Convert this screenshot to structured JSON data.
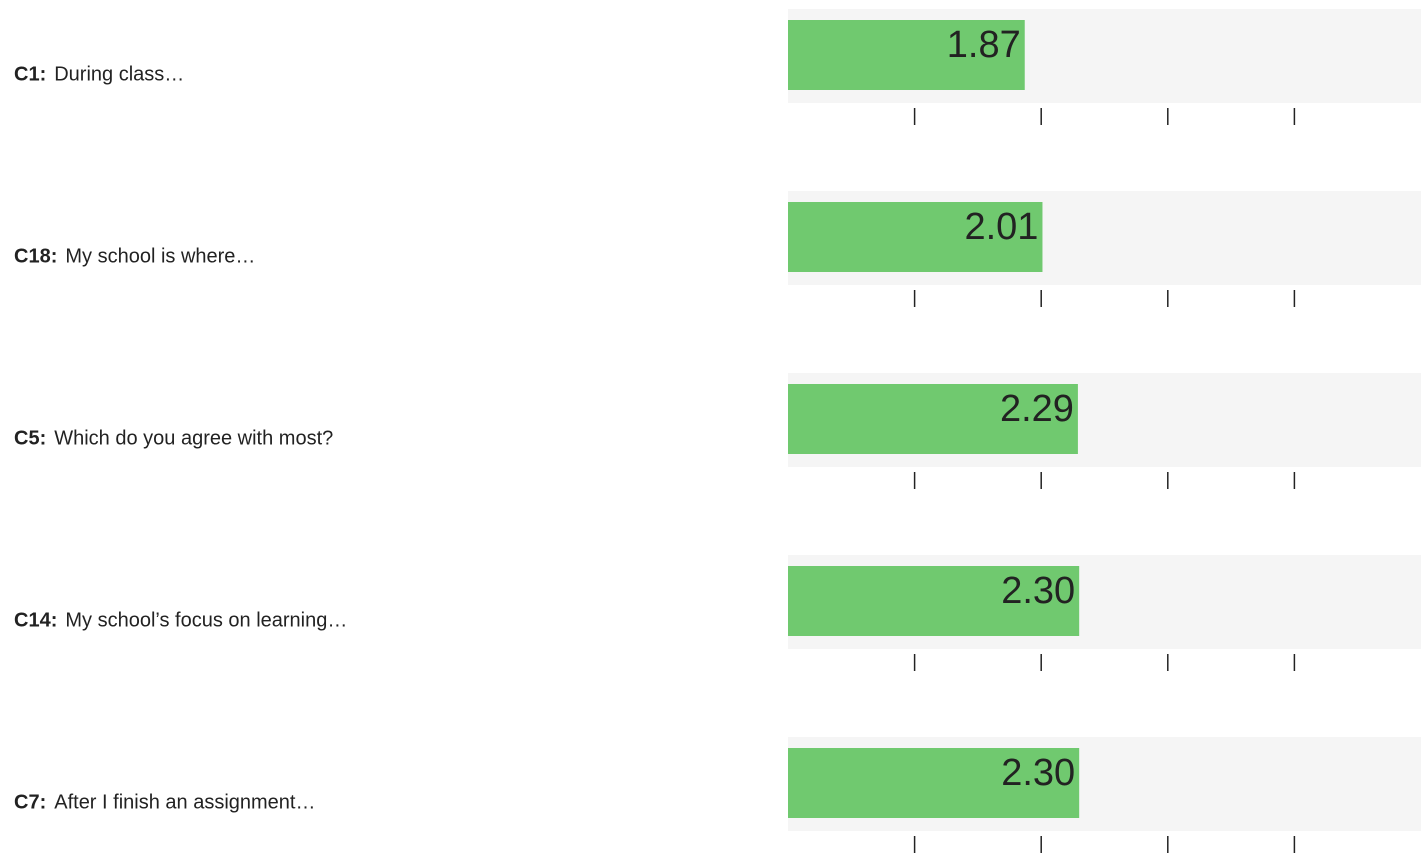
{
  "chart_data": {
    "type": "bar",
    "orientation": "horizontal",
    "codes": [
      "C1:",
      "C18:",
      "C5:",
      "C14:",
      "C7:"
    ],
    "categories": [
      "During class…",
      "My school is where…",
      "Which do you agree with most?",
      "My school’s focus on learning…",
      "After I finish an assignment…"
    ],
    "values": [
      1.87,
      2.01,
      2.29,
      2.3,
      2.3
    ],
    "value_labels": [
      "1.87",
      "2.01",
      "2.29",
      "2.30",
      "2.30"
    ],
    "color": "#70c96f",
    "track_color": "#f5f5f5",
    "xlim": [
      0,
      5
    ],
    "xticks": [
      1,
      2,
      3,
      4
    ]
  }
}
